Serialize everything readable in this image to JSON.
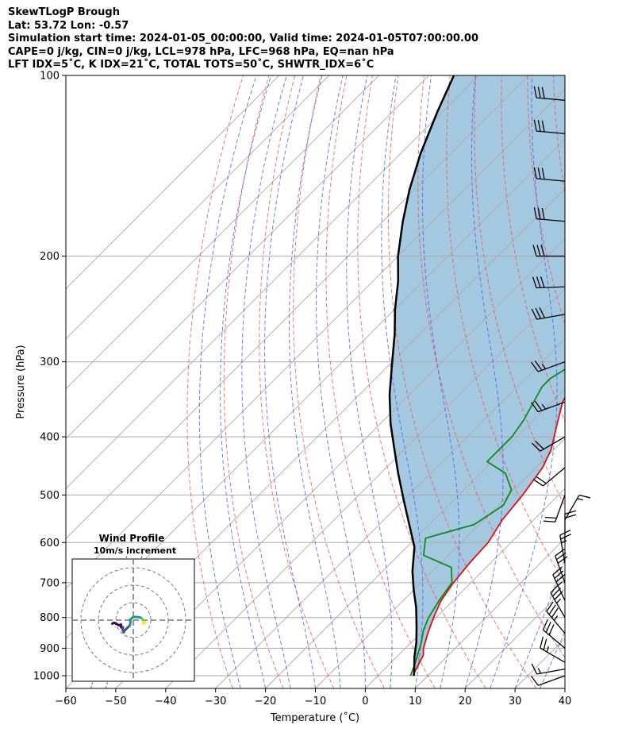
{
  "header": {
    "line1": "SkewTLogP Brough",
    "line2": "Lat: 53.72   Lon: -0.57",
    "line3": "Simulation start time: 2024-01-05_00:00:00, Valid time: 2024-01-05T07:00:00.00",
    "line4": "CAPE=0 j/kg, CIN=0 j/kg, LCL=978 hPa, LFC=968 hPa, EQ=nan hPa",
    "line5": "LFT IDX=5˚C, K IDX=21˚C, TOTAL TOTS=50˚C, SHWTR_IDX=6˚C"
  },
  "chart_data": {
    "type": "line",
    "xlabel": "Temperature (˚C)",
    "ylabel": "Pressure (hPa)",
    "xlim": [
      -60,
      40
    ],
    "ylim": [
      1050,
      100
    ],
    "y_scale": "log",
    "skew": "45deg",
    "x_ticks": [
      -60,
      -50,
      -40,
      -30,
      -20,
      -10,
      0,
      10,
      20,
      30,
      40
    ],
    "y_ticks": [
      1000,
      900,
      800,
      700,
      600,
      500,
      400,
      300,
      200,
      100
    ],
    "grid": true,
    "colors": {
      "temperature": "#e01010",
      "dewpoint": "#0a8a1a",
      "parcel": "#000000",
      "cape_fill": "#5b9ac8",
      "dry_adiabats": "#f05050",
      "moist_adiabats": "#4a5af0",
      "mixing_ratio": "#9040c0",
      "isotherms": "#aaaaaa"
    },
    "series": [
      {
        "name": "",
        "kind": "temperature",
        "points": [
          [
            7,
            1000
          ],
          [
            6.3,
            975
          ],
          [
            5,
            925
          ],
          [
            3.6,
            900
          ],
          [
            1.5,
            850
          ],
          [
            -0.5,
            800
          ],
          [
            -2.4,
            750
          ],
          [
            -3.5,
            700
          ],
          [
            -4.2,
            650
          ],
          [
            -4.6,
            600
          ],
          [
            -6.3,
            550
          ],
          [
            -7.2,
            500
          ],
          [
            -8.7,
            450
          ],
          [
            -10.6,
            420
          ],
          [
            -14.6,
            380
          ],
          [
            -17.8,
            350
          ],
          [
            -18.5,
            340
          ],
          [
            -17.4,
            330
          ],
          [
            -16.5,
            310
          ],
          [
            -16.2,
            300
          ],
          [
            -13.4,
            275
          ],
          [
            -9.8,
            250
          ],
          [
            -6,
            225
          ],
          [
            -3.5,
            215
          ],
          [
            -1.5,
            200
          ],
          [
            4,
            180
          ],
          [
            8.5,
            165
          ],
          [
            12,
            155
          ],
          [
            17,
            127
          ],
          [
            17.6,
            120
          ],
          [
            19,
            110
          ],
          [
            20,
            100
          ]
        ]
      },
      {
        "name": "",
        "kind": "dewpoint",
        "points": [
          [
            6.5,
            1000
          ],
          [
            5.2,
            960
          ],
          [
            2,
            880
          ],
          [
            0,
            840
          ],
          [
            -1.5,
            800
          ],
          [
            -2.8,
            750
          ],
          [
            -3.8,
            700
          ],
          [
            -7,
            660
          ],
          [
            -15,
            630
          ],
          [
            -18,
            590
          ],
          [
            -11,
            560
          ],
          [
            -9,
            520
          ],
          [
            -10.5,
            490
          ],
          [
            -15,
            460
          ],
          [
            -21,
            440
          ],
          [
            -21,
            400
          ],
          [
            -22,
            375
          ],
          [
            -25,
            330
          ],
          [
            -25,
            320
          ],
          [
            -23,
            300
          ],
          [
            -26,
            275
          ],
          [
            -31,
            250
          ],
          [
            -33,
            240
          ],
          [
            -35,
            220
          ],
          [
            -37,
            200
          ],
          [
            -39,
            180
          ],
          [
            -38,
            165
          ],
          [
            -37,
            150
          ],
          [
            -35,
            140
          ],
          [
            -31,
            125
          ],
          [
            -27,
            115
          ],
          [
            -24,
            100
          ]
        ]
      },
      {
        "name": "",
        "kind": "parcel",
        "points": [
          [
            7.2,
            1000
          ],
          [
            6.2,
            980
          ],
          [
            3.5,
            930
          ],
          [
            1,
            880
          ],
          [
            -2,
            830
          ],
          [
            -6,
            770
          ],
          [
            -10,
            720
          ],
          [
            -14,
            670
          ],
          [
            -18.5,
            610
          ],
          [
            -24,
            560
          ],
          [
            -30,
            510
          ],
          [
            -36.5,
            460
          ],
          [
            -42,
            420
          ],
          [
            -48,
            380
          ],
          [
            -54,
            340
          ],
          [
            -60,
            300
          ],
          [
            -65,
            270
          ],
          [
            -70,
            245
          ],
          [
            -75,
            220
          ],
          [
            -80,
            200
          ],
          [
            -86,
            175
          ],
          [
            -91,
            155
          ],
          [
            -96,
            135
          ],
          [
            -101,
            115
          ],
          [
            -105,
            100
          ]
        ]
      }
    ],
    "wind_barbs": [
      {
        "p": 1000,
        "speed_kt": 10,
        "dir_deg": 250
      },
      {
        "p": 975,
        "speed_kt": 15,
        "dir_deg": 260
      },
      {
        "p": 950,
        "speed_kt": 25,
        "dir_deg": 300
      },
      {
        "p": 900,
        "speed_kt": 30,
        "dir_deg": 310
      },
      {
        "p": 850,
        "speed_kt": 35,
        "dir_deg": 320
      },
      {
        "p": 800,
        "speed_kt": 35,
        "dir_deg": 330
      },
      {
        "p": 750,
        "speed_kt": 35,
        "dir_deg": 335
      },
      {
        "p": 700,
        "speed_kt": 30,
        "dir_deg": 340
      },
      {
        "p": 650,
        "speed_kt": 25,
        "dir_deg": 350
      },
      {
        "p": 600,
        "speed_kt": 20,
        "dir_deg": 0
      },
      {
        "p": 550,
        "speed_kt": 15,
        "dir_deg": 30
      },
      {
        "p": 500,
        "speed_kt": 20,
        "dir_deg": 200
      },
      {
        "p": 450,
        "speed_kt": 20,
        "dir_deg": 230
      },
      {
        "p": 400,
        "speed_kt": 20,
        "dir_deg": 240
      },
      {
        "p": 350,
        "speed_kt": 25,
        "dir_deg": 250
      },
      {
        "p": 300,
        "speed_kt": 25,
        "dir_deg": 250
      },
      {
        "p": 250,
        "speed_kt": 30,
        "dir_deg": 260
      },
      {
        "p": 225,
        "speed_kt": 30,
        "dir_deg": 268
      },
      {
        "p": 200,
        "speed_kt": 30,
        "dir_deg": 270
      },
      {
        "p": 175,
        "speed_kt": 30,
        "dir_deg": 275
      },
      {
        "p": 150,
        "speed_kt": 30,
        "dir_deg": 275
      },
      {
        "p": 125,
        "speed_kt": 30,
        "dir_deg": 275
      },
      {
        "p": 110,
        "speed_kt": 30,
        "dir_deg": 275
      }
    ],
    "inset": {
      "title": "Wind Profile",
      "subtitle": "10m/s increment",
      "type": "hodograph",
      "rings_ms": [
        10,
        20,
        30
      ],
      "range_ms": 35,
      "segments": [
        {
          "color": "#440154",
          "points": [
            [
              -12,
              -2
            ],
            [
              -11,
              -1.5
            ],
            [
              -10,
              -2
            ],
            [
              -9,
              -2.5
            ],
            [
              -8,
              -3
            ],
            [
              -7,
              -2.5
            ],
            [
              -7,
              -4
            ],
            [
              -6,
              -5
            ],
            [
              -6,
              -4
            ]
          ]
        },
        {
          "color": "#3b528b",
          "points": [
            [
              -6,
              -4
            ],
            [
              -6,
              -6
            ],
            [
              -5.5,
              -7
            ],
            [
              -5,
              -6
            ],
            [
              -3,
              -4
            ],
            [
              -2,
              -3
            ]
          ]
        },
        {
          "color": "#21918c",
          "points": [
            [
              -2,
              -3
            ],
            [
              -1.5,
              -1
            ],
            [
              -2,
              0
            ],
            [
              -1,
              1
            ],
            [
              0,
              1.8
            ],
            [
              2,
              1.8
            ],
            [
              4,
              1.5
            ],
            [
              5,
              1
            ]
          ]
        },
        {
          "color": "#5ec962",
          "points": [
            [
              5,
              1
            ],
            [
              5.5,
              0
            ],
            [
              6,
              -0.5
            ],
            [
              6,
              -1
            ]
          ]
        },
        {
          "color": "#fde725",
          "points": [
            [
              6,
              -1
            ],
            [
              5.5,
              -2
            ],
            [
              7,
              -1.5
            ],
            [
              6,
              -1
            ]
          ]
        }
      ]
    }
  }
}
